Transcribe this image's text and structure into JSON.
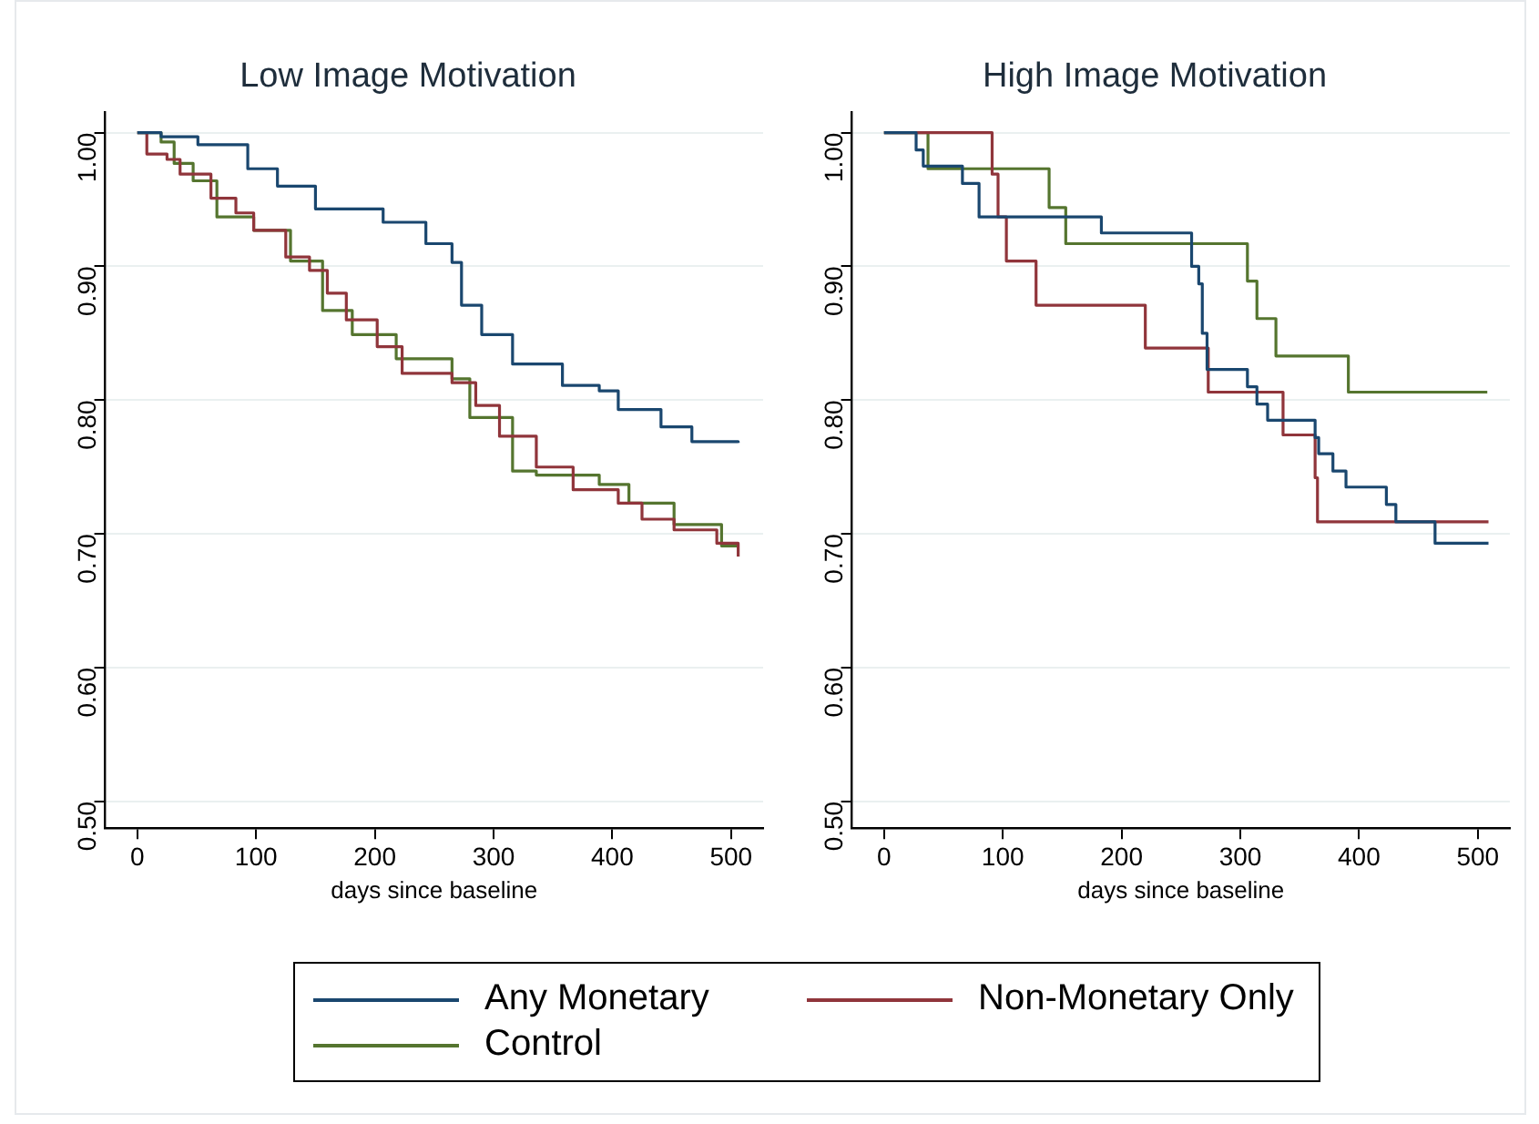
{
  "chart_data": [
    {
      "type": "step",
      "title": "Low Image Motivation",
      "xlabel": "days since baseline",
      "xlim": [
        -27,
        527
      ],
      "xticks": [
        0,
        100,
        200,
        300,
        400,
        500
      ],
      "ylim": [
        0.48,
        1.015
      ],
      "yticks": [
        {
          "value": 0.5,
          "label": "0.50"
        },
        {
          "value": 0.6,
          "label": "0.60"
        },
        {
          "value": 0.7,
          "label": "0.70"
        },
        {
          "value": 0.8,
          "label": "0.80"
        },
        {
          "value": 0.9,
          "label": "0.90"
        },
        {
          "value": 1,
          "label": "1.00"
        }
      ],
      "grid": "y",
      "legend": "bottom",
      "line_style": "solid",
      "marker": "none",
      "series": [
        {
          "name": "Any Monetary",
          "color": "#1a476f",
          "x": [
            0,
            20,
            51,
            93,
            118,
            150,
            207,
            243,
            265,
            273,
            290,
            316,
            358,
            389,
            405,
            441,
            467,
            506
          ],
          "values": [
            1,
            0.997,
            0.991,
            0.973,
            0.96,
            0.943,
            0.933,
            0.917,
            0.903,
            0.871,
            0.849,
            0.827,
            0.811,
            0.807,
            0.793,
            0.78,
            0.769,
            0.768
          ]
        },
        {
          "name": "Non-Monetary Only",
          "color": "#90353b",
          "x": [
            0,
            8,
            25,
            36,
            62,
            83,
            98,
            125,
            145,
            160,
            176,
            202,
            223,
            265,
            285,
            305,
            336,
            367,
            405,
            425,
            452,
            488,
            506
          ],
          "values": [
            1,
            0.984,
            0.98,
            0.969,
            0.951,
            0.94,
            0.927,
            0.907,
            0.897,
            0.88,
            0.86,
            0.84,
            0.82,
            0.813,
            0.796,
            0.773,
            0.75,
            0.733,
            0.723,
            0.711,
            0.703,
            0.693,
            0.683
          ]
        },
        {
          "name": "Control",
          "color": "#55752f",
          "x": [
            0,
            20,
            31,
            47,
            67,
            98,
            129,
            156,
            181,
            218,
            265,
            280,
            316,
            336,
            389,
            414,
            452,
            492,
            506
          ],
          "values": [
            1,
            0.993,
            0.977,
            0.964,
            0.937,
            0.927,
            0.904,
            0.867,
            0.849,
            0.831,
            0.816,
            0.787,
            0.747,
            0.744,
            0.737,
            0.723,
            0.707,
            0.691,
            0.691
          ]
        }
      ]
    },
    {
      "type": "step",
      "title": "High Image Motivation",
      "xlabel": "days since baseline",
      "xlim": [
        -27,
        527
      ],
      "xticks": [
        0,
        100,
        200,
        300,
        400,
        500
      ],
      "ylim": [
        0.48,
        1.015
      ],
      "yticks": [
        {
          "value": 0.5,
          "label": "0.50"
        },
        {
          "value": 0.6,
          "label": "0.60"
        },
        {
          "value": 0.7,
          "label": "0.70"
        },
        {
          "value": 0.8,
          "label": "0.80"
        },
        {
          "value": 0.9,
          "label": "0.90"
        },
        {
          "value": 1,
          "label": "1.00"
        }
      ],
      "grid": "y",
      "line_style": "solid",
      "marker": "none",
      "series": [
        {
          "color": "#1a476f",
          "x": [
            0,
            27,
            33,
            66,
            80,
            183,
            259,
            265,
            268,
            272,
            306,
            314,
            323,
            363,
            366,
            378,
            389,
            423,
            431,
            464,
            509
          ],
          "values": [
            1,
            0.987,
            0.975,
            0.962,
            0.937,
            0.925,
            0.9,
            0.887,
            0.85,
            0.823,
            0.81,
            0.797,
            0.785,
            0.772,
            0.76,
            0.747,
            0.735,
            0.722,
            0.709,
            0.693,
            0.693
          ]
        },
        {
          "color": "#90353b",
          "x": [
            0,
            91,
            96,
            103,
            128,
            220,
            273,
            336,
            363,
            365,
            509
          ],
          "values": [
            1,
            0.969,
            0.937,
            0.904,
            0.871,
            0.839,
            0.806,
            0.774,
            0.742,
            0.709,
            0.709
          ]
        },
        {
          "color": "#55752f",
          "x": [
            0,
            37,
            139,
            153,
            306,
            314,
            330,
            391,
            508
          ],
          "values": [
            1,
            0.973,
            0.944,
            0.917,
            0.889,
            0.861,
            0.833,
            0.806,
            0.806
          ]
        }
      ]
    }
  ]
}
